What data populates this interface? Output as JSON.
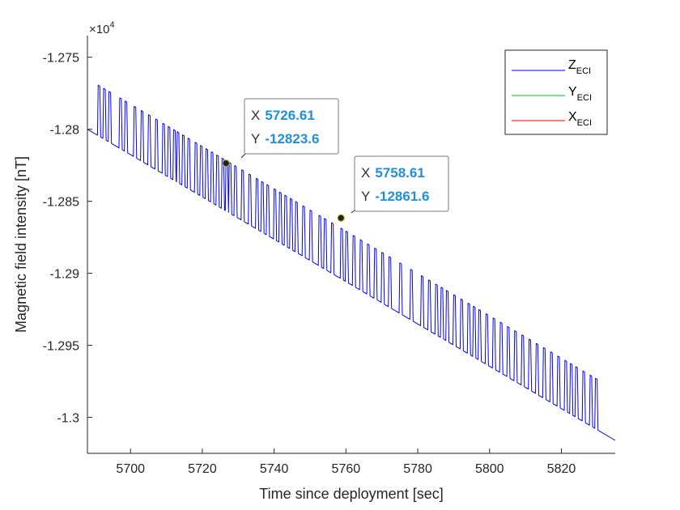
{
  "chart_data": {
    "type": "line",
    "title": "",
    "xlabel": "Time since deployment [sec]",
    "ylabel": "Magnetic field intensity [nT]",
    "y_exponent_label": "×10",
    "y_exponent_power": "4",
    "xlim": [
      5688,
      5835
    ],
    "ylim": [
      -13025,
      -12735
    ],
    "x_ticks": [
      5700,
      5720,
      5740,
      5760,
      5780,
      5800,
      5820
    ],
    "x_tick_labels": [
      "5700",
      "5720",
      "5740",
      "5760",
      "5780",
      "5800",
      "5820"
    ],
    "y_ticks": [
      -12750,
      -12800,
      -12850,
      -12900,
      -12950,
      -13000
    ],
    "y_tick_labels": [
      "-1.275",
      "-1.28",
      "-1.285",
      "-1.29",
      "-1.295",
      "-1.3"
    ],
    "grid": false,
    "legend_position": "top-right",
    "series": [
      {
        "name": "Z",
        "name_sub": "ECI",
        "color": "#0000ff",
        "baseline_start": [
          5688,
          -12800
        ],
        "baseline_end": [
          5835,
          -13016
        ],
        "spike_height": 35,
        "spike_x": [
          5691,
          5692.5,
          5694,
          5697,
          5698.5,
          5701,
          5703,
          5705,
          5707,
          5709,
          5710.5,
          5712,
          5713,
          5714.5,
          5716,
          5718,
          5719.5,
          5721,
          5722.5,
          5724,
          5725.5,
          5726.6,
          5727.5,
          5729,
          5731,
          5733,
          5735,
          5736.5,
          5738,
          5740,
          5741.5,
          5743,
          5744.5,
          5746,
          5748,
          5750,
          5752.5,
          5754,
          5756,
          5758.6,
          5760,
          5762,
          5764,
          5766,
          5768,
          5770,
          5772,
          5775,
          5778,
          5781,
          5783,
          5785,
          5786.5,
          5788,
          5790,
          5792,
          5794,
          5795.5,
          5797,
          5799,
          5801,
          5803,
          5805,
          5807,
          5809,
          5811,
          5813,
          5815,
          5817,
          5819,
          5821,
          5822.5,
          5824,
          5826,
          5828,
          5829.5
        ]
      },
      {
        "name": "Y",
        "name_sub": "ECI",
        "color": "#00cc00"
      },
      {
        "name": "X",
        "name_sub": "ECI",
        "color": "#ee0000"
      }
    ],
    "datatips": [
      {
        "x_key": "X",
        "x_value": "5726.61",
        "y_key": "Y",
        "y_value": "-12823.6",
        "x": 5726.61,
        "y": -12823.6
      },
      {
        "x_key": "X",
        "x_value": "5758.61",
        "y_key": "Y",
        "y_value": "-12861.6",
        "x": 5758.61,
        "y": -12861.6
      }
    ]
  }
}
